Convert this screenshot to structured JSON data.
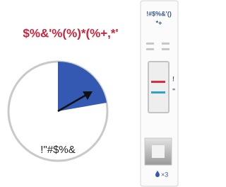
{
  "header": {
    "title": "$%&'%(%)*(%+,*'"
  },
  "timer": {
    "label": "!\"#$%&"
  },
  "device": {
    "title": "!#$%&'()",
    "subtitle": "*+",
    "line_labels": [
      "!",
      "\""
    ],
    "drops": "×3"
  }
}
